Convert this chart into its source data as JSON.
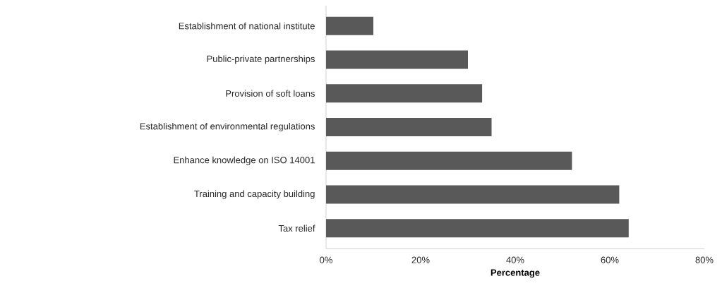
{
  "chart_data": {
    "type": "bar",
    "orientation": "horizontal",
    "xlabel": "Percentage",
    "categories": [
      "Establishment of national institute",
      "Public-private partnerships",
      "Provision of soft loans",
      "Establishment of environmental regulations",
      "Enhance knowledge on ISO 14001",
      "Training and capacity building",
      "Tax relief"
    ],
    "values": [
      10,
      30,
      33,
      35,
      52,
      62,
      64
    ],
    "color": "#595959",
    "xlim": [
      0,
      80
    ],
    "xticks": [
      {
        "value": 0,
        "label": "0%"
      },
      {
        "value": 20,
        "label": "20%"
      },
      {
        "value": 40,
        "label": "40%"
      },
      {
        "value": 60,
        "label": "60%"
      },
      {
        "value": 80,
        "label": "80%"
      }
    ],
    "grid": false
  }
}
